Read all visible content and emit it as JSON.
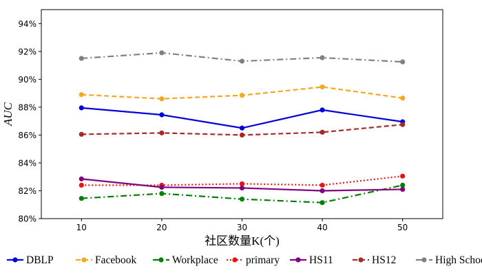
{
  "chart_data": {
    "type": "line",
    "x": [
      10,
      20,
      30,
      40,
      50
    ],
    "xlabel": "社区数量K(个)",
    "ylabel": "AUC",
    "ylim": [
      80,
      95
    ],
    "xlim": [
      5,
      55
    ],
    "yticks": [
      80,
      82,
      84,
      86,
      88,
      90,
      92,
      94
    ],
    "ytick_labels": [
      "80%",
      "82%",
      "84%",
      "86%",
      "88%",
      "90%",
      "92%",
      "94%"
    ],
    "xtick_labels": [
      "10",
      "20",
      "30",
      "40",
      "50"
    ],
    "grid": false,
    "legend_position": "bottom",
    "series": [
      {
        "name": "DBLP",
        "values": [
          87.95,
          87.45,
          86.5,
          87.8,
          86.95
        ],
        "color": "#0000dd",
        "dash": "solid"
      },
      {
        "name": "Facebook",
        "values": [
          88.9,
          88.6,
          88.85,
          89.45,
          88.65
        ],
        "color": "#f5a623",
        "dash": "dashed"
      },
      {
        "name": "Workplace",
        "values": [
          81.45,
          81.8,
          81.4,
          81.15,
          82.4
        ],
        "color": "#008000",
        "dash": "dashdot"
      },
      {
        "name": "primary",
        "values": [
          82.4,
          82.4,
          82.5,
          82.4,
          83.05
        ],
        "color": "#ee1111",
        "dash": "dotted"
      },
      {
        "name": "HS11",
        "values": [
          82.85,
          82.25,
          82.2,
          82.0,
          82.1
        ],
        "color": "#800080",
        "dash": "solid"
      },
      {
        "name": "HS12",
        "values": [
          86.05,
          86.15,
          86.0,
          86.2,
          86.75
        ],
        "color": "#a52a2a",
        "dash": "dashed"
      },
      {
        "name": "High School",
        "values": [
          91.5,
          91.9,
          91.3,
          91.55,
          91.25
        ],
        "color": "#808080",
        "dash": "dashdot"
      }
    ]
  }
}
